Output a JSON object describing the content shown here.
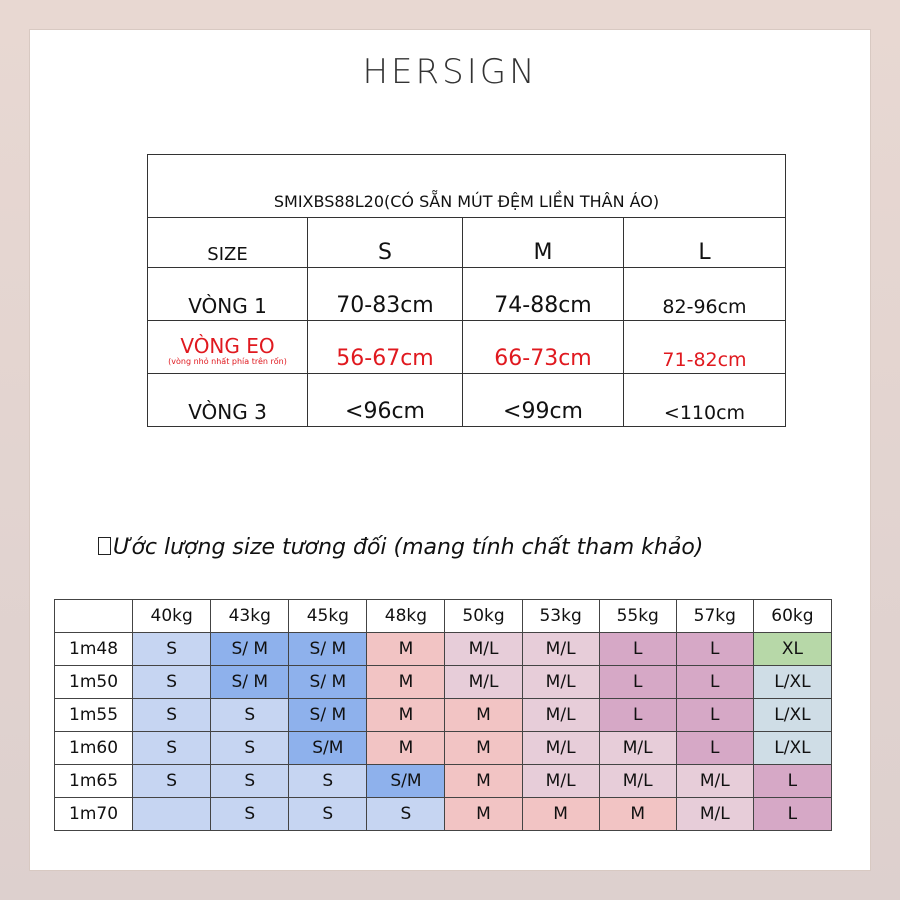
{
  "brand": "HERSIGN",
  "size_table": {
    "title": "SMIXBS88L20(CÓ SẴN MÚT ĐỆM LIỀN THÂN ÁO)",
    "size_label": "SIZE",
    "sizes": [
      "S",
      "M",
      "L"
    ],
    "rows": [
      {
        "label": "VÒNG 1",
        "values": [
          "70-83cm",
          "74-88cm",
          "82-96cm"
        ]
      },
      {
        "label": "VÒNG EO",
        "sublabel": "(vòng nhỏ nhất phía trên rốn)",
        "values": [
          "56-67cm",
          "66-73cm",
          "71-82cm"
        ]
      },
      {
        "label": "VÒNG 3",
        "values": [
          "<96cm",
          "<99cm",
          "<110cm"
        ]
      }
    ],
    "highlight_color": "#e0191f"
  },
  "section_title": "Ước lượng size tương đối (mang tính chất tham khảo)",
  "weight_height": {
    "weights": [
      "40kg",
      "43kg",
      "45kg",
      "48kg",
      "50kg",
      "53kg",
      "55kg",
      "57kg",
      "60kg"
    ],
    "rows": [
      {
        "height": "1m48",
        "cells": [
          "S",
          "S/ M",
          "S/ M",
          "M",
          "M/L",
          "M/L",
          "L",
          "L",
          "XL"
        ]
      },
      {
        "height": "1m50",
        "cells": [
          "S",
          "S/ M",
          "S/ M",
          "M",
          "M/L",
          "M/L",
          "L",
          "L",
          "L/XL"
        ]
      },
      {
        "height": "1m55",
        "cells": [
          "S",
          "S",
          "S/ M",
          "M",
          "M",
          "M/L",
          "L",
          "L",
          "L/XL"
        ]
      },
      {
        "height": "1m60",
        "cells": [
          "S",
          "S",
          "S/M",
          "M",
          "M",
          "M/L",
          "M/L",
          "L",
          "L/XL"
        ]
      },
      {
        "height": "1m65",
        "cells": [
          "S",
          "S",
          "S",
          "S/M",
          "M",
          "M/L",
          "M/L",
          "M/L",
          "L"
        ]
      },
      {
        "height": "1m70",
        "cells": [
          "",
          "S",
          "S",
          "S",
          "M",
          "M",
          "M",
          "M/L",
          "L"
        ]
      }
    ],
    "cell_colors": [
      [
        "#c6d5f2",
        "#8eb1ec",
        "#8eb1ec",
        "#f2c4c4",
        "#e7cdd9",
        "#e7cdd9",
        "#d6a8c6",
        "#d6a8c6",
        "#b7d8a8"
      ],
      [
        "#c6d5f2",
        "#8eb1ec",
        "#8eb1ec",
        "#f2c4c4",
        "#e7cdd9",
        "#e7cdd9",
        "#d6a8c6",
        "#d6a8c6",
        "#cfdde6"
      ],
      [
        "#c6d5f2",
        "#c6d5f2",
        "#8eb1ec",
        "#f2c4c4",
        "#f2c4c4",
        "#e7cdd9",
        "#d6a8c6",
        "#d6a8c6",
        "#cfdde6"
      ],
      [
        "#c6d5f2",
        "#c6d5f2",
        "#8eb1ec",
        "#f2c4c4",
        "#f2c4c4",
        "#e7cdd9",
        "#e7cdd9",
        "#d6a8c6",
        "#cfdde6"
      ],
      [
        "#c6d5f2",
        "#c6d5f2",
        "#c6d5f2",
        "#8eb1ec",
        "#f2c4c4",
        "#e7cdd9",
        "#e7cdd9",
        "#e7cdd9",
        "#d6a8c6"
      ],
      [
        "#c6d5f2",
        "#c6d5f2",
        "#c6d5f2",
        "#c6d5f2",
        "#f2c4c4",
        "#f2c4c4",
        "#f2c4c4",
        "#e7cdd9",
        "#d6a8c6"
      ]
    ]
  }
}
